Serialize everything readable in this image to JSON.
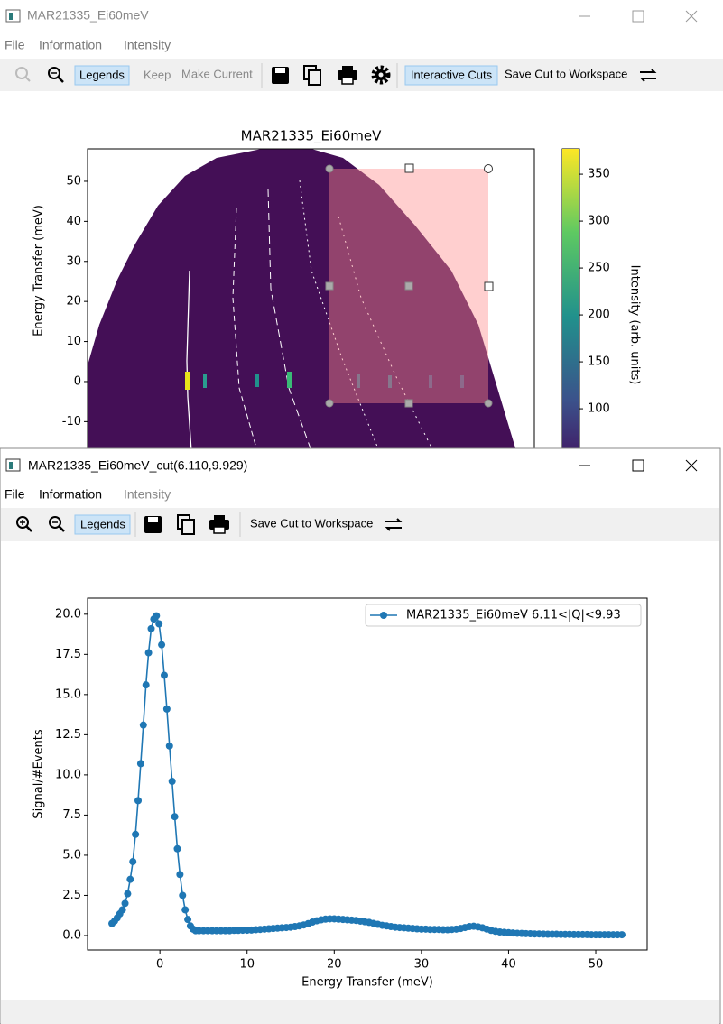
{
  "windows": [
    {
      "title": "MAR21335_Ei60meV",
      "menu": [
        "File",
        "Information",
        "Intensity"
      ],
      "toolbar": [
        "Legends",
        "Keep",
        "Make Current",
        "Interactive Cuts",
        "Save Cut to Workspace"
      ]
    },
    {
      "title": "MAR21335_Ei60meV_cut(6.110,9.929)",
      "menu": [
        "File",
        "Information",
        "Intensity"
      ],
      "toolbar": [
        "Legends",
        "Save Cut to Workspace"
      ]
    }
  ],
  "chart_data": [
    {
      "type": "heatmap",
      "title": "MAR21335_Ei60meV",
      "y_label": "Energy Transfer (meV)",
      "ylim": [
        -20,
        58.1
      ],
      "yticks": [
        -10,
        0,
        10,
        20,
        30,
        40,
        50
      ],
      "colorbar": {
        "label": "Intensity (arb. units)",
        "lim": [
          20,
          377
        ],
        "ticks": [
          100,
          150,
          200,
          250,
          300,
          350
        ],
        "colormap": "viridis"
      }
    },
    {
      "type": "line",
      "x_label": "Energy Transfer (meV)",
      "y_label": "Signal/#Events",
      "xlim": [
        -8.3,
        55.9
      ],
      "ylim": [
        -0.9,
        21.0
      ],
      "xticks": [
        0,
        10,
        20,
        30,
        40,
        50
      ],
      "yticks": [
        {
          "value": 0,
          "label": "0.0"
        },
        2.5,
        {
          "value": 5,
          "label": "5.0"
        },
        7.5,
        {
          "value": 10,
          "label": "10.0"
        },
        12.5,
        {
          "value": 15,
          "label": "15.0"
        },
        17.5,
        {
          "value": 20,
          "label": "20.0"
        }
      ],
      "legend": "upper right",
      "marker": "circle",
      "x": [
        -5.5,
        -5.2,
        -4.9,
        -4.6,
        -4.3,
        -4.0,
        -3.7,
        -3.4,
        -3.1,
        -2.8,
        -2.5,
        -2.2,
        -1.9,
        -1.6,
        -1.3,
        -1.0,
        -0.7,
        -0.4,
        -0.1,
        0.2,
        0.5,
        0.8,
        1.1,
        1.4,
        1.7,
        2.0,
        2.3,
        2.6,
        2.9,
        3.2,
        3.5,
        3.8,
        4.1,
        4.5,
        5,
        5.5,
        6,
        6.5,
        7,
        7.5,
        8,
        8.5,
        9,
        9.5,
        10,
        10.5,
        11,
        11.5,
        12,
        12.5,
        13,
        13.5,
        14,
        14.5,
        15,
        15.5,
        16,
        16.5,
        17,
        17.5,
        18,
        18.5,
        19,
        19.5,
        20,
        20.5,
        21,
        21.5,
        22,
        22.5,
        23,
        23.5,
        24,
        24.5,
        25,
        25.5,
        26,
        26.5,
        27,
        27.5,
        28,
        28.5,
        29,
        29.5,
        30,
        30.5,
        31,
        31.5,
        32,
        32.5,
        33,
        33.5,
        34,
        34.5,
        35,
        35.5,
        36,
        36.5,
        37,
        37.5,
        38,
        38.5,
        39,
        39.5,
        40,
        40.5,
        41,
        41.5,
        42,
        42.5,
        43,
        43.5,
        44,
        44.5,
        45,
        45.5,
        46,
        46.5,
        47,
        47.5,
        48,
        48.5,
        49,
        49.5,
        50,
        50.5,
        51,
        51.5,
        52,
        52.5,
        53
      ],
      "series": [
        {
          "name": "MAR21335_Ei60meV 6.11<|Q|<9.93",
          "color": "#1f77b4",
          "values": [
            0.75,
            0.9,
            1.1,
            1.35,
            1.6,
            2.0,
            2.6,
            3.5,
            4.6,
            6.3,
            8.4,
            10.7,
            13.1,
            15.6,
            17.6,
            19.1,
            19.7,
            19.9,
            19.4,
            18.1,
            16.2,
            14.1,
            11.8,
            9.6,
            7.4,
            5.4,
            3.8,
            2.5,
            1.6,
            1.0,
            0.6,
            0.4,
            0.3,
            0.3,
            0.3,
            0.3,
            0.3,
            0.3,
            0.3,
            0.3,
            0.3,
            0.32,
            0.32,
            0.33,
            0.33,
            0.34,
            0.36,
            0.38,
            0.4,
            0.42,
            0.44,
            0.46,
            0.48,
            0.5,
            0.52,
            0.56,
            0.6,
            0.66,
            0.74,
            0.84,
            0.92,
            0.98,
            1.02,
            1.04,
            1.04,
            1.02,
            1.0,
            0.98,
            0.96,
            0.94,
            0.9,
            0.86,
            0.82,
            0.76,
            0.7,
            0.64,
            0.6,
            0.56,
            0.52,
            0.5,
            0.48,
            0.46,
            0.44,
            0.42,
            0.4,
            0.4,
            0.38,
            0.38,
            0.38,
            0.36,
            0.36,
            0.38,
            0.4,
            0.44,
            0.5,
            0.56,
            0.58,
            0.54,
            0.48,
            0.4,
            0.32,
            0.26,
            0.22,
            0.2,
            0.18,
            0.16,
            0.14,
            0.13,
            0.12,
            0.11,
            0.1,
            0.1,
            0.09,
            0.08,
            0.08,
            0.08,
            0.07,
            0.07,
            0.07,
            0.06,
            0.06,
            0.06,
            0.06,
            0.05,
            0.05,
            0.05,
            0.05,
            0.05,
            0.05,
            0.05,
            0.05
          ]
        }
      ]
    }
  ]
}
